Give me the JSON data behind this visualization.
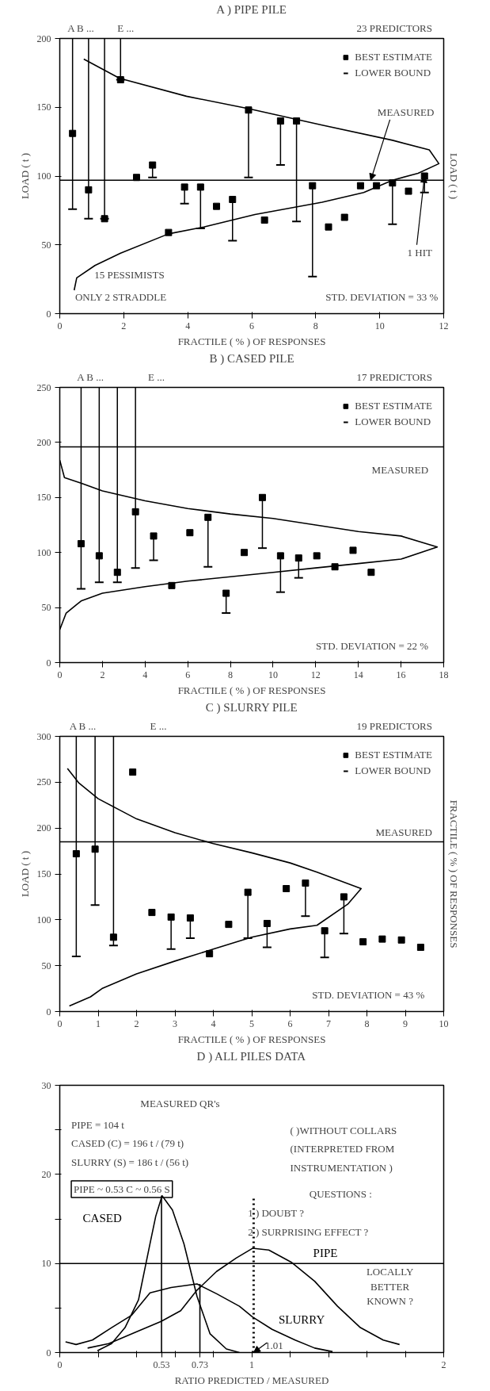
{
  "chart_data": [
    {
      "type": "scatter",
      "title": "A ) PIPE PILE",
      "xlabel": "FRACTILE ( % ) OF RESPONSES",
      "ylabel": "LOAD ( t )",
      "y2label": "LOAD ( t )",
      "x": [
        0.4,
        0.9,
        1.4,
        1.9,
        2.4,
        2.9,
        3.4,
        3.9,
        4.4,
        4.9,
        5.4,
        5.9,
        6.4,
        6.9,
        7.4,
        7.9,
        8.4,
        8.9,
        9.4,
        9.9,
        10.4,
        10.9,
        11.4
      ],
      "series": [
        {
          "name": "BEST ESTIMATE",
          "type": "scatter",
          "marker": "square",
          "color": "#000000",
          "values": [
            131,
            90,
            69,
            170,
            99,
            108,
            59,
            92,
            92,
            78,
            83,
            148,
            68,
            140,
            140,
            93,
            63,
            70,
            93,
            93,
            95,
            89,
            100
          ],
          "errors": [
            [
              76,
              200
            ],
            [
              69,
              200
            ],
            [
              69,
              200
            ],
            [
              170,
              200
            ],
            null,
            [
              99,
              108
            ],
            null,
            [
              80,
              92
            ],
            [
              62,
              92
            ],
            null,
            [
              53,
              83
            ],
            [
              99,
              148
            ],
            null,
            [
              108,
              140
            ],
            [
              67,
              140
            ],
            [
              27,
              93
            ],
            null,
            null,
            null,
            null,
            [
              65,
              95
            ],
            null,
            [
              88,
              100
            ]
          ]
        },
        {
          "type": "line",
          "color": "#000000",
          "x": [
            0.75,
            1.87,
            3.96,
            5.9,
            8.2,
            10.4,
            11.55,
            11.85,
            11.2,
            10.4,
            9.5,
            8.2,
            6.1,
            4.5,
            3.4,
            1.9,
            1.1,
            0.53,
            0.45
          ],
          "values": [
            185,
            171,
            158,
            149,
            137,
            126,
            119,
            109,
            102,
            97,
            88,
            81,
            72,
            63,
            58,
            44,
            35,
            26,
            17
          ]
        }
      ],
      "ref_lines": [
        {
          "axis": "y",
          "value": 97,
          "label": "MEASURED"
        }
      ],
      "annotations": [
        "A B ...",
        "E ...",
        "23 PREDICTORS",
        {
          "text": "1 HIT",
          "x": 11.4,
          "y": 100
        },
        "15 PESSIMISTS",
        "ONLY 2 STRADDLE",
        "STD. DEVIATION = 33 %",
        "LOWER BOUND"
      ],
      "xlim": [
        0,
        12
      ],
      "xticks": [
        0,
        2,
        4,
        6,
        8,
        10,
        12
      ],
      "ylim": [
        0,
        200
      ],
      "yticks": [
        0,
        50,
        100,
        150,
        200
      ],
      "legend": "top right"
    },
    {
      "type": "scatter",
      "title": "B ) CASED PILE",
      "xlabel": "FRACTILE ( % ) OF RESPONSES",
      "x": [
        1.0,
        1.85,
        2.7,
        3.55,
        4.4,
        5.25,
        6.1,
        6.95,
        7.8,
        8.65,
        9.5,
        10.35,
        11.2,
        12.05,
        12.9,
        13.75,
        14.6
      ],
      "series": [
        {
          "name": "BEST ESTIMATE",
          "type": "scatter",
          "marker": "square",
          "color": "#000000",
          "values": [
            108,
            97,
            82,
            137,
            115,
            70,
            118,
            132,
            63,
            100,
            150,
            97,
            95,
            97,
            87,
            102,
            82
          ],
          "errors": [
            [
              67,
              250
            ],
            [
              73,
              250
            ],
            [
              73,
              250
            ],
            [
              86,
              250
            ],
            [
              93,
              115
            ],
            null,
            null,
            [
              87,
              132
            ],
            [
              45,
              63
            ],
            null,
            [
              104,
              150
            ],
            [
              64,
              97
            ],
            [
              77,
              95
            ],
            null,
            null,
            null,
            null
          ]
        },
        {
          "type": "line",
          "color": "#000000",
          "x": [
            0,
            0.22,
            1,
            2,
            4,
            6,
            8,
            10,
            12,
            14,
            16,
            17.7,
            16,
            14,
            12,
            10,
            8,
            6,
            4,
            2,
            1,
            0.3,
            0
          ],
          "values": [
            184,
            168,
            163,
            156,
            147,
            140,
            135,
            131,
            125,
            119,
            115,
            105,
            94,
            90,
            86,
            82,
            78,
            74,
            69,
            63,
            56,
            45,
            30
          ]
        }
      ],
      "ref_lines": [
        {
          "axis": "y",
          "value": 196,
          "label": "MEASURED"
        }
      ],
      "annotations": [
        "A B ...",
        "E ...",
        "17 PREDICTORS",
        "STD. DEVIATION = 22 %",
        "LOWER BOUND"
      ],
      "xlim": [
        0,
        18
      ],
      "xticks": [
        0,
        2,
        4,
        6,
        8,
        10,
        12,
        14,
        16,
        18
      ],
      "ylim": [
        0,
        250
      ],
      "yticks": [
        0,
        50,
        100,
        150,
        200,
        250
      ],
      "legend": "top right"
    },
    {
      "type": "scatter",
      "title": "C ) SLURRY PILE",
      "xlabel": "FRACTILE ( % ) OF RESPONSES",
      "ylabel": "LOAD ( t )",
      "y2label": "FRACTILE ( % ) OF RESPONSES",
      "x": [
        0.43,
        0.92,
        1.4,
        1.9,
        2.4,
        2.9,
        3.4,
        3.9,
        4.4,
        4.9,
        5.4,
        5.9,
        6.4,
        6.9,
        7.4,
        7.9,
        8.4,
        8.9,
        9.4
      ],
      "series": [
        {
          "name": "BEST ESTIMATE",
          "type": "scatter",
          "marker": "square",
          "color": "#000000",
          "values": [
            172,
            177,
            81,
            261,
            108,
            103,
            102,
            63,
            95,
            130,
            96,
            134,
            140,
            88,
            125,
            76,
            79,
            78,
            70
          ],
          "errors": [
            [
              60,
              300
            ],
            [
              116,
              300
            ],
            [
              72,
              300
            ],
            null,
            null,
            [
              68,
              103
            ],
            [
              80,
              102
            ],
            null,
            null,
            [
              80,
              130
            ],
            [
              70,
              96
            ],
            null,
            [
              104,
              140
            ],
            [
              59,
              88
            ],
            [
              85,
              125
            ],
            null,
            null,
            null,
            null
          ]
        },
        {
          "type": "line",
          "color": "#000000",
          "x": [
            0.2,
            0.5,
            1,
            1.5,
            2,
            3,
            4,
            5,
            6,
            6.7,
            7.85,
            7.5,
            6.7,
            6,
            5,
            4,
            3,
            2,
            1.1,
            0.8,
            0.25
          ],
          "values": [
            265,
            249,
            232,
            221,
            210,
            195,
            183,
            173,
            162,
            152,
            134,
            117,
            94,
            90,
            81,
            68,
            55,
            41,
            25,
            16,
            6
          ]
        }
      ],
      "ref_lines": [
        {
          "axis": "y",
          "value": 185,
          "label": "MEASURED"
        }
      ],
      "annotations": [
        "A B ...",
        "E ...",
        "19 PREDICTORS",
        "STD. DEVIATION = 43 %",
        "LOWER BOUND"
      ],
      "xlim": [
        0,
        10
      ],
      "xticks": [
        0,
        1,
        2,
        3,
        4,
        5,
        6,
        7,
        8,
        9,
        10
      ],
      "ylim": [
        0,
        300
      ],
      "yticks": [
        0,
        50,
        100,
        150,
        200,
        250,
        300
      ],
      "legend": "top right"
    },
    {
      "type": "line",
      "title": "D ) ALL PILES DATA",
      "xlabel": "RATIO PREDICTED / MEASURED",
      "series": [
        {
          "name": "CASED",
          "color": "#000000",
          "x": [
            0.196,
            0.27,
            0.34,
            0.41,
            0.47,
            0.5,
            0.533,
            0.587,
            0.647,
            0.715,
            0.783,
            0.868,
            0.936
          ],
          "values": [
            0.2,
            1.0,
            2.8,
            5.9,
            12.2,
            15.3,
            17.6,
            16.0,
            12.2,
            6.3,
            2.1,
            0.4,
            0
          ]
        },
        {
          "name": "SLURRY",
          "color": "#000000",
          "x": [
            0.03,
            0.085,
            0.17,
            0.27,
            0.375,
            0.47,
            0.58,
            0.715,
            0.817,
            0.936,
            1.004,
            1.106,
            1.226,
            1.328,
            1.421
          ],
          "values": [
            1.2,
            0.9,
            1.4,
            2.8,
            4.2,
            6.7,
            7.3,
            7.7,
            6.6,
            5.2,
            4.0,
            2.6,
            1.4,
            0.5,
            0.1
          ]
        },
        {
          "name": "PIPE",
          "color": "#000000",
          "x": [
            0.145,
            0.255,
            0.408,
            0.528,
            0.63,
            0.715,
            0.817,
            0.919,
            1.004,
            1.089,
            1.209,
            1.328,
            1.447,
            1.566,
            1.685,
            1.77
          ],
          "values": [
            0.5,
            1.0,
            2.4,
            3.5,
            4.7,
            7.0,
            9.1,
            10.6,
            11.7,
            11.5,
            10.1,
            8.0,
            5.2,
            2.8,
            1.4,
            0.9
          ]
        },
        {
          "color": "#000000",
          "x": [
            0.53,
            0.53
          ],
          "values": [
            0,
            17.6
          ]
        },
        {
          "color": "#000000",
          "x": [
            0.73,
            0.73
          ],
          "values": [
            0,
            7.7
          ]
        },
        {
          "color": "#000000",
          "line_style": "dotted",
          "x": [
            1.01,
            1.01
          ],
          "values": [
            0,
            17.5
          ]
        }
      ],
      "ref_lines": [
        {
          "axis": "y",
          "value": 10
        }
      ],
      "annotations": [
        "MEASURED QR's",
        "PIPE = 104 t",
        "CASED (C) = 196 t / (79 t)",
        "SLURRY (S) = 186 t / (56 t)",
        "( )WITHOUT COLLARS",
        "(INTERPRETED FROM",
        "INSTRUMENTATION )",
        "PIPE ~ 0.53 C ~ 0.56 S",
        "QUESTIONS :",
        "1 ) DOUBT ?",
        "2 ) SURPRISING EFFECT ?",
        "LOCALLY",
        "BETTER",
        "KNOWN ?",
        {
          "text": "1.01",
          "x": 1.01,
          "y": 0
        }
      ],
      "xlim": [
        0,
        2
      ],
      "xticks": [
        0,
        {
          "value": 0.2,
          "label": null
        },
        {
          "value": 0.4,
          "label": null
        },
        0.53,
        {
          "value": 0.6,
          "label": null
        },
        0.73,
        {
          "value": 0.8,
          "label": null
        },
        1,
        {
          "value": 1.2,
          "label": null
        },
        {
          "value": 1.4,
          "label": null
        },
        {
          "value": 1.6,
          "label": null
        },
        {
          "value": 1.8,
          "label": null
        },
        2
      ],
      "ylim": [
        0,
        30
      ],
      "yticks": [
        0,
        {
          "value": 5,
          "label": null
        },
        10,
        {
          "value": 15,
          "label": null
        },
        20,
        {
          "value": 25,
          "label": null
        },
        30
      ]
    }
  ]
}
